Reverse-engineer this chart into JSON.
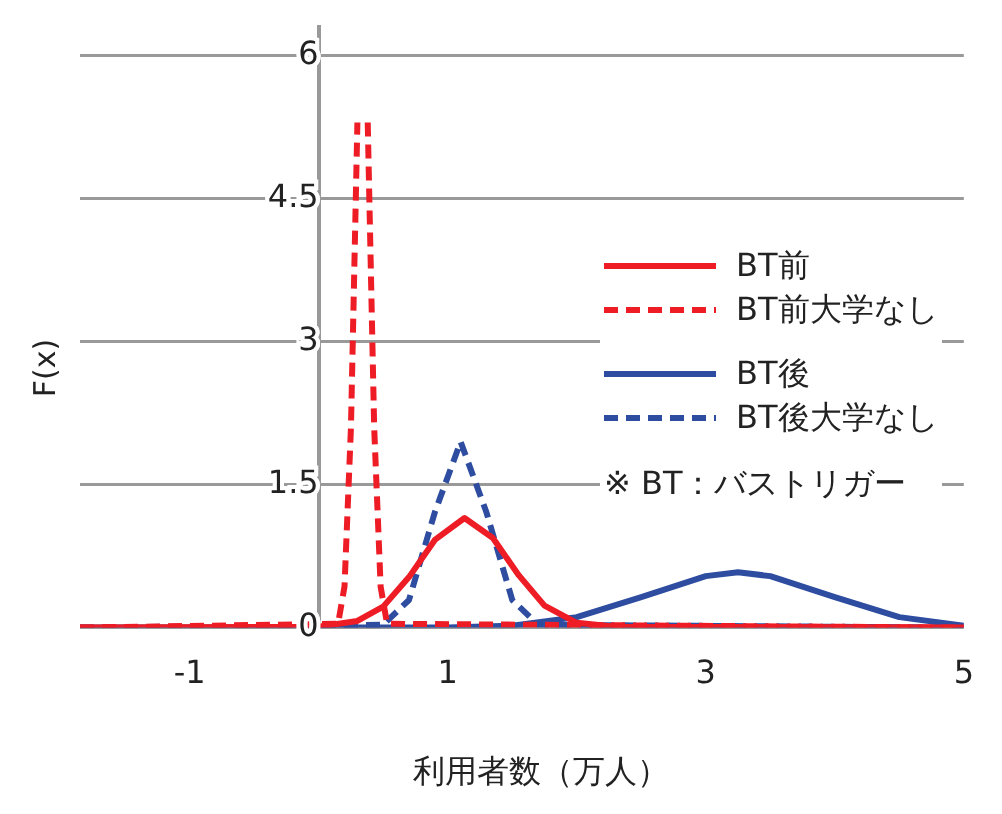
{
  "chart_data": {
    "type": "line",
    "xlabel": "利用者数（万人）",
    "ylabel": "F(x)",
    "xlim": [
      -1.85,
      5
    ],
    "xticks": [
      -1,
      1,
      3,
      5
    ],
    "ylim": [
      0,
      6.3
    ],
    "yticks": [
      0,
      1.5,
      3,
      4.5,
      6
    ],
    "grid": "y",
    "legend": "right",
    "marker": "none",
    "annotations": [
      "※  BT：バストリガー"
    ],
    "series": [
      {
        "name": "BT前",
        "color": "#ee1c25",
        "line_style": "solid",
        "x": [
          -1.85,
          0,
          0.3,
          0.5,
          0.7,
          0.9,
          1.13,
          1.35,
          1.55,
          1.75,
          2.0,
          2.3,
          5
        ],
        "values": [
          0,
          0.01,
          0.07,
          0.22,
          0.53,
          0.92,
          1.15,
          0.94,
          0.55,
          0.23,
          0.05,
          0.01,
          0
        ]
      },
      {
        "name": "BT前大学なし",
        "color": "#ee1c25",
        "line_style": "dashed",
        "x": [
          -1.85,
          0.15,
          0.2,
          0.25,
          0.3,
          0.32,
          0.36,
          0.38,
          0.43,
          0.48,
          0.53,
          5
        ],
        "values": [
          0,
          0.04,
          0.43,
          2.1,
          5.3,
          null,
          null,
          5.3,
          2.1,
          0.43,
          0.04,
          0
        ]
      },
      {
        "name": "BT後",
        "color": "#2e4da0",
        "line_style": "solid",
        "x": [
          -1.85,
          1,
          1.5,
          2,
          2.5,
          3,
          3.25,
          3.5,
          4,
          4.5,
          5
        ],
        "values": [
          0,
          0,
          0.02,
          0.11,
          0.32,
          0.54,
          0.58,
          0.54,
          0.32,
          0.11,
          0.02
        ]
      },
      {
        "name": "BT後大学なし",
        "color": "#2e4da0",
        "line_style": "dashed",
        "x": [
          -1.85,
          0.5,
          0.7,
          0.9,
          1.1,
          1.3,
          1.5,
          1.7,
          5
        ],
        "values": [
          0,
          0.03,
          0.29,
          1.21,
          1.95,
          1.21,
          0.29,
          0.03,
          0
        ]
      }
    ]
  }
}
